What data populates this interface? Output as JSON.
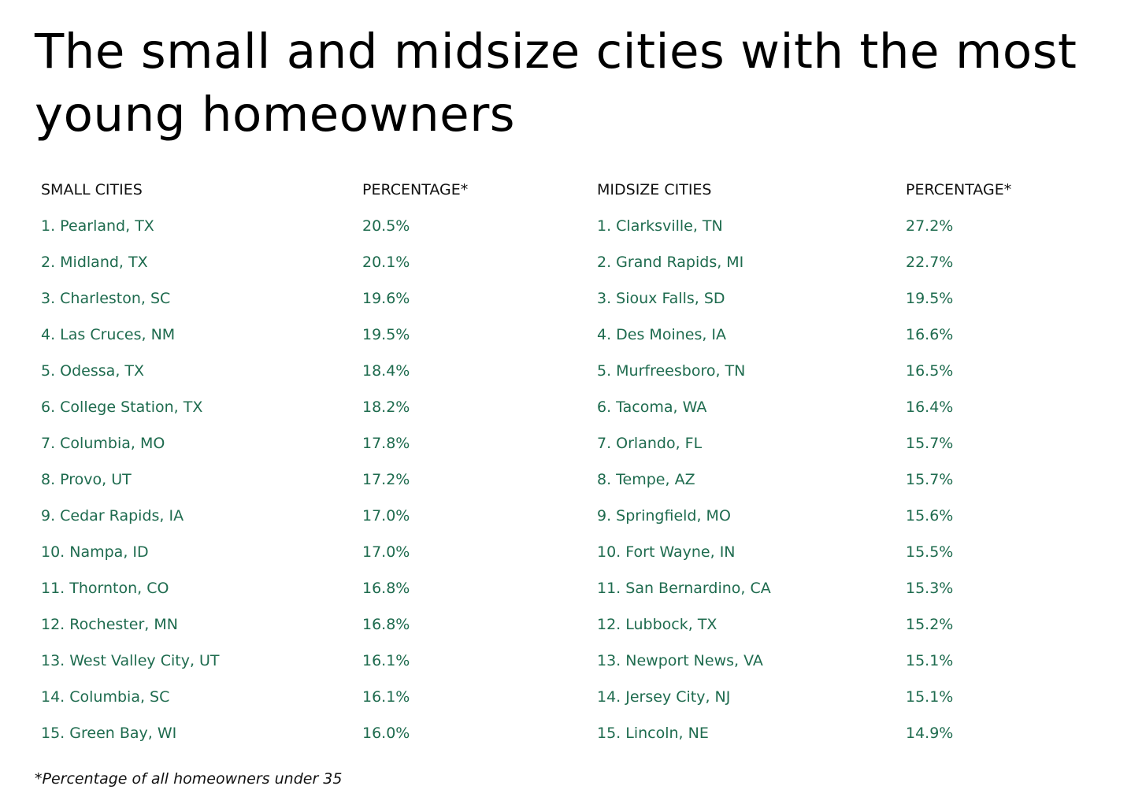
{
  "title": "The small and midsize cities with the most young homeowners",
  "headers": {
    "small_cities": "SMALL CITIES",
    "small_percentage": "PERCENTAGE*",
    "midsize_cities": "MIDSIZE CITIES",
    "midsize_percentage": "PERCENTAGE*"
  },
  "rows": [
    {
      "small_city": "1. Pearland, TX",
      "small_pct": "20.5%",
      "mid_city": "1. Clarksville, TN",
      "mid_pct": "27.2%"
    },
    {
      "small_city": "2. Midland, TX",
      "small_pct": "20.1%",
      "mid_city": "2. Grand Rapids, MI",
      "mid_pct": "22.7%"
    },
    {
      "small_city": "3. Charleston, SC",
      "small_pct": "19.6%",
      "mid_city": "3. Sioux Falls, SD",
      "mid_pct": "19.5%"
    },
    {
      "small_city": "4. Las Cruces, NM",
      "small_pct": "19.5%",
      "mid_city": "4. Des Moines, IA",
      "mid_pct": "16.6%"
    },
    {
      "small_city": "5. Odessa, TX",
      "small_pct": "18.4%",
      "mid_city": "5. Murfreesboro, TN",
      "mid_pct": "16.5%"
    },
    {
      "small_city": "6. College Station, TX",
      "small_pct": "18.2%",
      "mid_city": "6. Tacoma, WA",
      "mid_pct": "16.4%"
    },
    {
      "small_city": "7. Columbia, MO",
      "small_pct": "17.8%",
      "mid_city": "7. Orlando, FL",
      "mid_pct": "15.7%"
    },
    {
      "small_city": "8. Provo, UT",
      "small_pct": "17.2%",
      "mid_city": "8. Tempe, AZ",
      "mid_pct": "15.7%"
    },
    {
      "small_city": "9. Cedar Rapids, IA",
      "small_pct": "17.0%",
      "mid_city": "9. Springfield, MO",
      "mid_pct": "15.6%"
    },
    {
      "small_city": "10. Nampa, ID",
      "small_pct": "17.0%",
      "mid_city": "10. Fort Wayne, IN",
      "mid_pct": "15.5%"
    },
    {
      "small_city": "11. Thornton, CO",
      "small_pct": "16.8%",
      "mid_city": "11. San Bernardino, CA",
      "mid_pct": "15.3%"
    },
    {
      "small_city": "12. Rochester, MN",
      "small_pct": "16.8%",
      "mid_city": "12. Lubbock, TX",
      "mid_pct": "15.2%"
    },
    {
      "small_city": "13. West Valley City, UT",
      "small_pct": "16.1%",
      "mid_city": "13. Newport News, VA",
      "mid_pct": "15.1%"
    },
    {
      "small_city": "14. Columbia, SC",
      "small_pct": "16.1%",
      "mid_city": "14. Jersey City, NJ",
      "mid_pct": "15.1%"
    },
    {
      "small_city": "15. Green Bay, WI",
      "small_pct": "16.0%",
      "mid_city": "15. Lincoln, NE",
      "mid_pct": "14.9%"
    }
  ],
  "footnote": "*Percentage of all homeowners under 35",
  "colors": {
    "data_text": "#1e6b4e",
    "header_text": "#111111",
    "title_text": "#000000"
  }
}
